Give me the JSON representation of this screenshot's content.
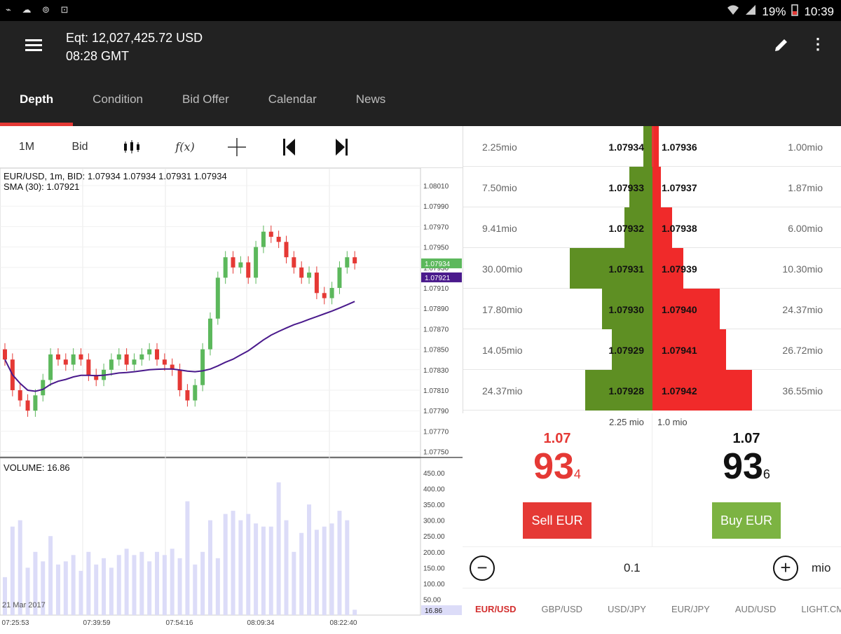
{
  "statusbar": {
    "left_icons": "⌁ ☁ ⊚ ⊡",
    "battery": "19%",
    "time": "10:39"
  },
  "header": {
    "equity": "Eqt: 12,027,425.72 USD",
    "time": "08:28 GMT"
  },
  "tabs": [
    "Depth",
    "Condition",
    "Bid Offer",
    "Calendar",
    "News"
  ],
  "toolbar": {
    "interval": "1M",
    "price_type": "Bid",
    "fx_glyph": "f(x)"
  },
  "chart": {
    "info_line1": "EUR/USD, 1m, BID: 1.07934 1.07934 1.07931 1.07934",
    "info_line2": "SMA (30): 1.07921",
    "price_ticks": [
      "1.08010",
      "1.07990",
      "1.07970",
      "1.07950",
      "1.07930",
      "1.07910",
      "1.07890",
      "1.07870",
      "1.07850",
      "1.07830",
      "1.07810",
      "1.07790",
      "1.07770",
      "1.07750"
    ],
    "current_price": "1.07934",
    "sma_price": "1.07921",
    "volume_label": "VOLUME: 16.86",
    "volume_ticks": [
      "450.00",
      "400.00",
      "350.00",
      "300.00",
      "250.00",
      "200.00",
      "150.00",
      "100.00",
      "50.00"
    ],
    "current_volume": "16.86",
    "date": "21 Mar 2017",
    "time_ticks": [
      "07:25:53",
      "07:39:59",
      "07:54:16",
      "08:09:34",
      "08:22:40"
    ],
    "colors": {
      "up": "#5cb85c",
      "down": "#e53935",
      "sma": "#4a1a8c",
      "volume": "#dcdcf8"
    }
  },
  "chart_data": {
    "type": "candlestick",
    "series_close": [
      1.0784,
      1.0781,
      1.078,
      1.0779,
      1.07805,
      1.0782,
      1.07845,
      1.0784,
      1.07835,
      1.07845,
      1.0784,
      1.07825,
      1.0782,
      1.0783,
      1.0784,
      1.07845,
      1.07835,
      1.0784,
      1.07845,
      1.0785,
      1.0784,
      1.07835,
      1.0783,
      1.0781,
      1.078,
      1.07815,
      1.0785,
      1.0788,
      1.0792,
      1.0794,
      1.0793,
      1.07935,
      1.0792,
      1.0795,
      1.07965,
      1.0796,
      1.07955,
      1.0794,
      1.0793,
      1.0792,
      1.07925,
      1.07905,
      1.079,
      1.0791,
      1.0793,
      1.0794,
      1.07934
    ],
    "volume_values": [
      120,
      280,
      300,
      150,
      200,
      170,
      250,
      160,
      170,
      190,
      140,
      200,
      160,
      180,
      150,
      190,
      210,
      190,
      200,
      170,
      200,
      190,
      210,
      180,
      360,
      160,
      200,
      300,
      180,
      320,
      330,
      300,
      320,
      290,
      280,
      280,
      420,
      300,
      200,
      260,
      350,
      270,
      280,
      290,
      330,
      300,
      16.86
    ]
  },
  "depth": {
    "rows": [
      {
        "bid_vol": "2.25mio",
        "bid": "1.07934",
        "ask": "1.07936",
        "ask_vol": "1.00mio",
        "bid_amt": 2.25,
        "ask_amt": 1.0
      },
      {
        "bid_vol": "7.50mio",
        "bid": "1.07933",
        "ask": "1.07937",
        "ask_vol": "1.87mio",
        "bid_amt": 7.5,
        "ask_amt": 1.87
      },
      {
        "bid_vol": "9.41mio",
        "bid": "1.07932",
        "ask": "1.07938",
        "ask_vol": "6.00mio",
        "bid_amt": 9.41,
        "ask_amt": 6.0
      },
      {
        "bid_vol": "30.00mio",
        "bid": "1.07931",
        "ask": "1.07939",
        "ask_vol": "10.30mio",
        "bid_amt": 30.0,
        "ask_amt": 10.3
      },
      {
        "bid_vol": "17.80mio",
        "bid": "1.07930",
        "ask": "1.07940",
        "ask_vol": "24.37mio",
        "bid_amt": 17.8,
        "ask_amt": 24.37
      },
      {
        "bid_vol": "14.05mio",
        "bid": "1.07929",
        "ask": "1.07941",
        "ask_vol": "26.72mio",
        "bid_amt": 14.05,
        "ask_amt": 26.72
      },
      {
        "bid_vol": "24.37mio",
        "bid": "1.07928",
        "ask": "1.07942",
        "ask_vol": "36.55mio",
        "bid_amt": 24.37,
        "ask_amt": 36.55
      }
    ],
    "bid_total": "2.25 mio",
    "ask_total": "1.0 mio"
  },
  "sell": {
    "big": "1.07",
    "pips": "93",
    "frac": "4",
    "label": "Sell EUR",
    "color": "#e53935"
  },
  "buy": {
    "big": "1.07",
    "pips": "93",
    "frac": "6",
    "label": "Buy EUR",
    "color": "#7cb342"
  },
  "amount": {
    "value": "0.1",
    "unit": "mio"
  },
  "pairs": [
    "EUR/USD",
    "GBP/USD",
    "USD/JPY",
    "EUR/JPY",
    "AUD/USD",
    "LIGHT.CMD/USD"
  ]
}
